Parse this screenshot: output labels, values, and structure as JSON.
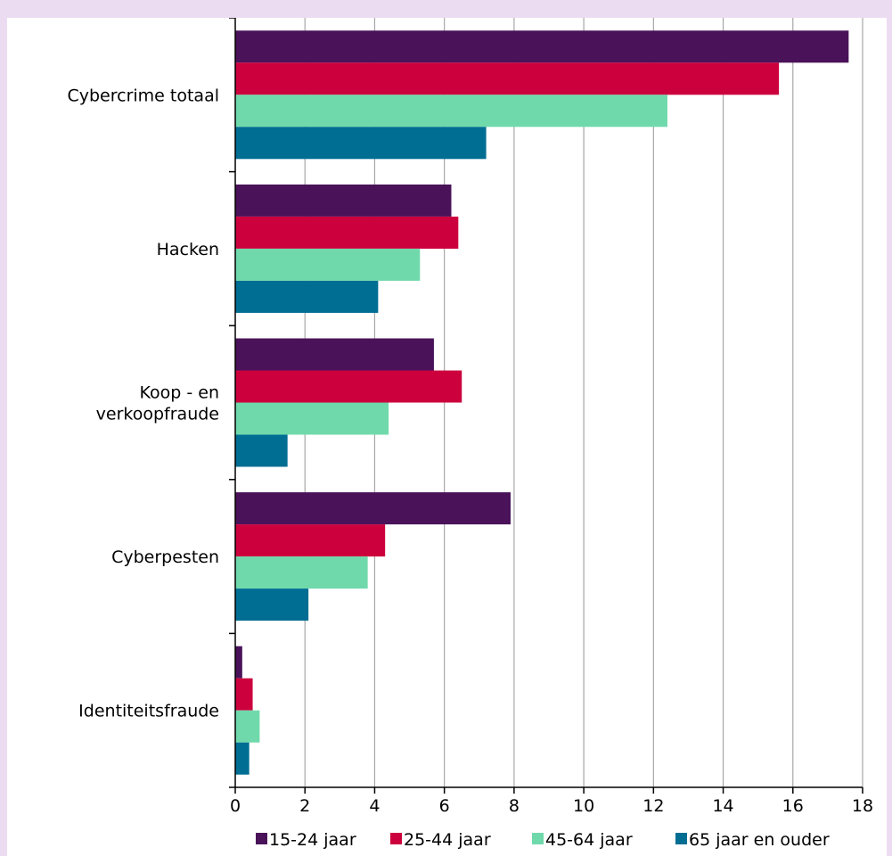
{
  "chart_data": {
    "type": "bar",
    "orientation": "horizontal",
    "categories": [
      [
        "Cybercrime totaal"
      ],
      [
        "Hacken"
      ],
      [
        "Koop - en",
        "verkoopfraude"
      ],
      [
        "Cyberpesten"
      ],
      [
        "Identiteitsfraude"
      ]
    ],
    "series": [
      {
        "name": "15-24 jaar",
        "color": "#4a1259",
        "values": [
          17.6,
          6.2,
          5.7,
          7.9,
          0.2
        ]
      },
      {
        "name": "25-44 jaar",
        "color": "#cc003d",
        "values": [
          15.6,
          6.4,
          6.5,
          4.3,
          0.5
        ]
      },
      {
        "name": "45-64 jaar",
        "color": "#70d9ab",
        "values": [
          12.4,
          5.3,
          4.4,
          3.8,
          0.7
        ]
      },
      {
        "name": "65 jaar en ouder",
        "color": "#006d93",
        "values": [
          7.2,
          4.1,
          1.5,
          2.1,
          0.4
        ]
      }
    ],
    "xlim": [
      0,
      18
    ],
    "xticks": [
      "0",
      "2",
      "4",
      "6",
      "8",
      "10",
      "12",
      "14",
      "16",
      "18"
    ],
    "grid": "vertical",
    "legend": "bottom"
  }
}
